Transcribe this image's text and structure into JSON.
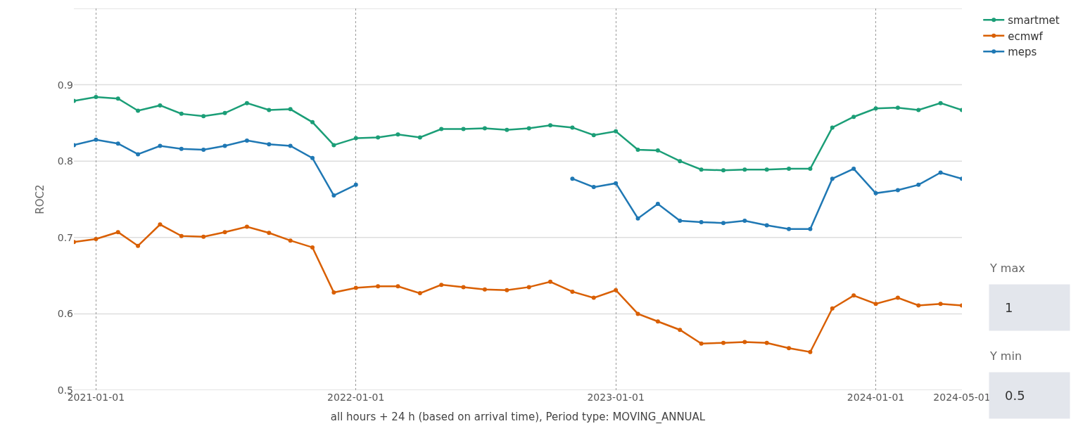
{
  "chart_data": {
    "type": "line",
    "xlabel": "all hours + 24 h (based on arrival time), Period type: MOVING_ANNUAL",
    "ylabel": "ROC2",
    "x": [
      "2020-12",
      "2021-01",
      "2021-02",
      "2021-03",
      "2021-04",
      "2021-05",
      "2021-06",
      "2021-07",
      "2021-08",
      "2021-09",
      "2021-10",
      "2021-11",
      "2021-12",
      "2022-01",
      "2022-02",
      "2022-03",
      "2022-04",
      "2022-05",
      "2022-06",
      "2022-07",
      "2022-08",
      "2022-09",
      "2022-10",
      "2022-11",
      "2022-12",
      "2023-01",
      "2023-02",
      "2023-03",
      "2023-04",
      "2023-05",
      "2023-06",
      "2023-07",
      "2023-08",
      "2023-09",
      "2023-10",
      "2023-11",
      "2023-12",
      "2024-01",
      "2024-02",
      "2024-03",
      "2024-04",
      "2024-05"
    ],
    "series": [
      {
        "name": "smartmet",
        "color": "#1b9e77",
        "values": [
          0.879,
          0.884,
          0.882,
          0.866,
          0.873,
          0.862,
          0.859,
          0.863,
          0.876,
          0.867,
          0.868,
          0.851,
          0.821,
          0.83,
          0.831,
          0.835,
          0.831,
          0.842,
          0.842,
          0.843,
          0.841,
          0.843,
          0.847,
          0.844,
          0.834,
          0.839,
          0.815,
          0.814,
          0.8,
          0.789,
          0.788,
          0.789,
          0.789,
          0.79,
          0.79,
          0.844,
          0.858,
          0.869,
          0.87,
          0.867,
          0.876,
          0.867
        ]
      },
      {
        "name": "ecmwf",
        "color": "#d95f02",
        "values": [
          0.694,
          0.698,
          0.707,
          0.689,
          0.717,
          0.702,
          0.701,
          0.707,
          0.714,
          0.706,
          0.696,
          0.687,
          0.628,
          0.634,
          0.636,
          0.636,
          0.627,
          0.638,
          0.635,
          0.632,
          0.631,
          0.635,
          0.642,
          0.629,
          0.621,
          0.631,
          0.6,
          0.59,
          0.579,
          0.561,
          0.562,
          0.563,
          0.562,
          0.555,
          0.55,
          0.607,
          0.624,
          0.613,
          0.621,
          0.611,
          0.613,
          0.611
        ]
      },
      {
        "name": "meps",
        "color": "#1f78b4",
        "values": [
          0.821,
          0.828,
          0.823,
          0.809,
          0.82,
          0.816,
          0.815,
          0.82,
          0.827,
          0.822,
          0.82,
          0.804,
          0.755,
          0.769,
          null,
          null,
          null,
          null,
          null,
          null,
          null,
          null,
          null,
          0.777,
          0.766,
          0.771,
          0.725,
          0.744,
          0.722,
          0.72,
          0.719,
          0.722,
          0.716,
          0.711,
          0.711,
          0.777,
          0.79,
          0.758,
          0.762,
          0.769,
          0.785,
          0.777
        ]
      }
    ],
    "xlim": [
      "2020-12",
      "2024-05"
    ],
    "xticks": [
      "2021-01-01",
      "2022-01-01",
      "2023-01-01",
      "2024-01-01",
      "2024-05-01"
    ],
    "ylim": [
      0.5,
      1.0
    ],
    "yticks": [
      0.5,
      0.6,
      0.7,
      0.8,
      0.9,
      {
        "value": 1.0,
        "label": null
      }
    ],
    "grid": true,
    "legend": "top right",
    "marker": "circle",
    "line_style": "solid",
    "annotations": [
      "Y max",
      "1",
      "Y min",
      "0.5"
    ]
  }
}
